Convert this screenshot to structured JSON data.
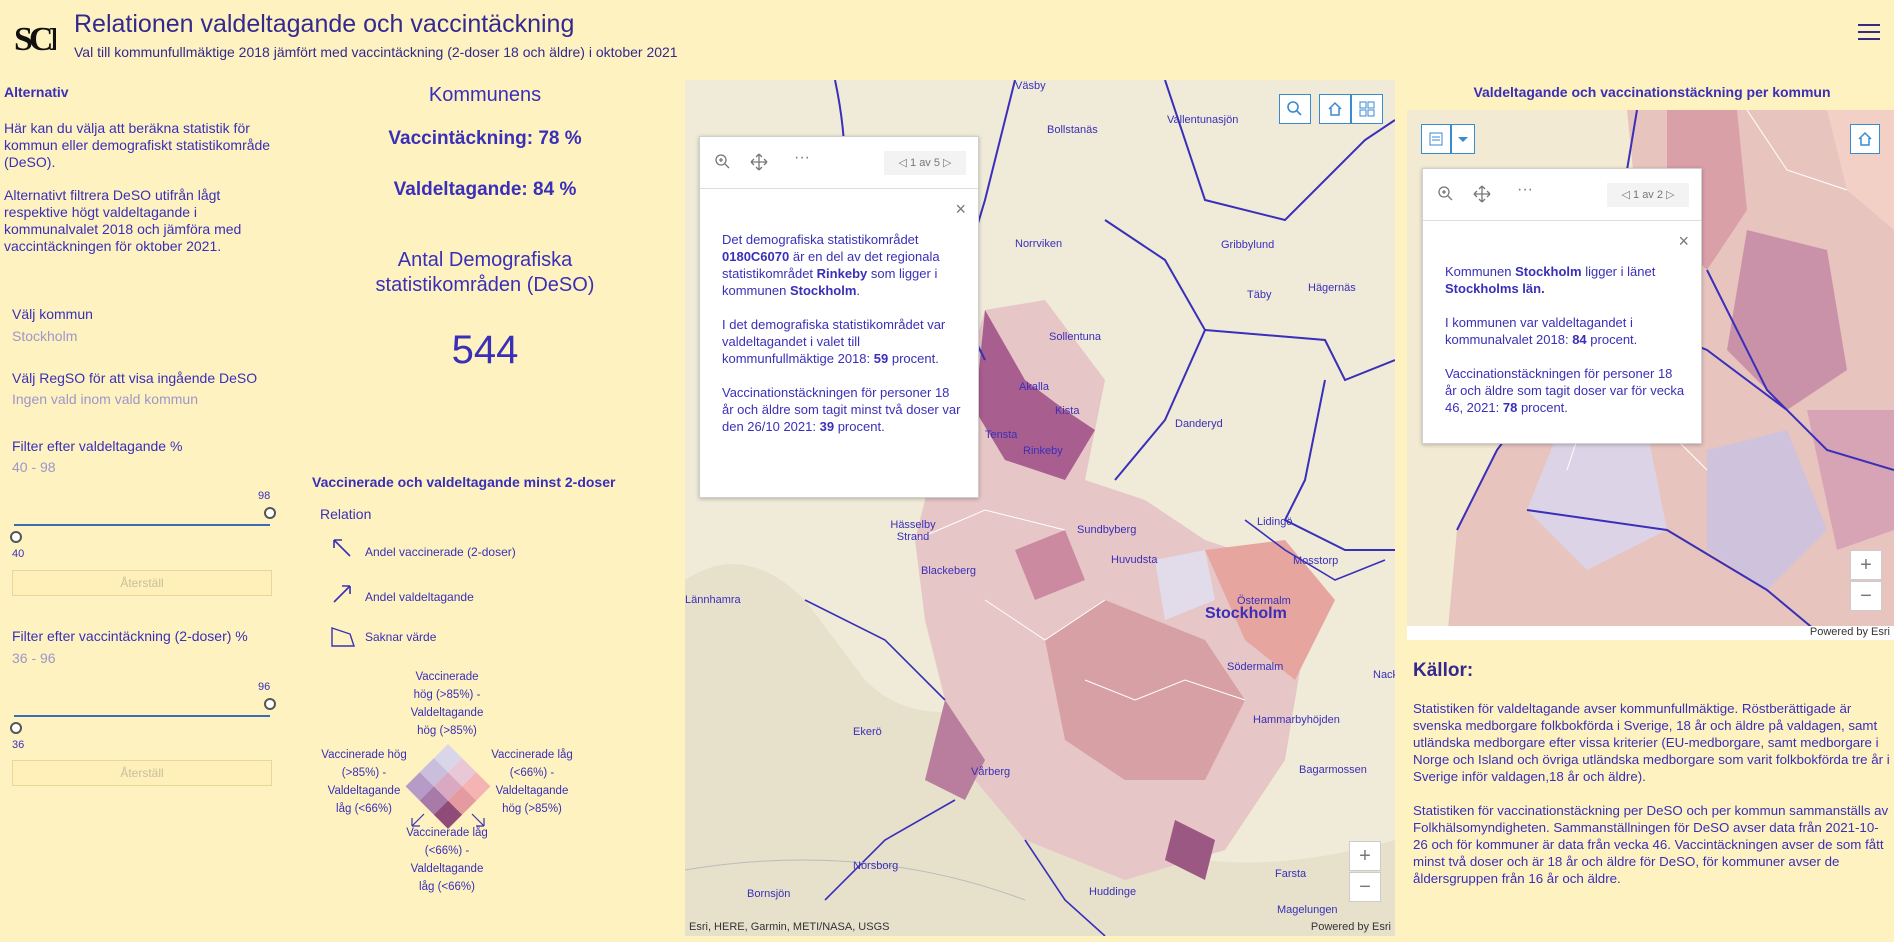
{
  "header": {
    "logo_text": "SCB",
    "title": "Relationen valdeltagande och vaccintäckning",
    "subtitle": "Val till kommunfullmäktige 2018 jämfört med vaccintäckning (2-doser 18 och äldre) i oktober 2021"
  },
  "sidebar": {
    "heading": "Alternativ",
    "para1": "Här kan du välja att beräkna statistik för kommun eller demografiskt statistikområde (DeSO).",
    "para2": "Alternativt filtrera DeSO utifrån lågt respektive högt valdeltagande i kommunalvalet 2018 och jämföra med vaccintäckningen för oktober 2021.",
    "kommun_label": "Välj kommun",
    "kommun_value": "Stockholm",
    "regso_label": "Välj RegSO för att visa ingående DeSO",
    "regso_value": "Ingen vald inom vald kommun",
    "filter1_label": "Filter efter valdeltagande %",
    "filter1_range": "40 - 98",
    "filter1_min": "40",
    "filter1_max": "98",
    "reset1": "Återställ",
    "filter2_label": "Filter efter vaccintäckning (2-doser) %",
    "filter2_range": "36 - 96",
    "filter2_min": "36",
    "filter2_max": "96",
    "reset2": "Återställ"
  },
  "stats": {
    "heading": "Kommunens",
    "vacc": "Vaccintäckning: 78 %",
    "val": "Valdeltagande: 84 %",
    "deso_heading": "Antal Demografiska statistikområden (DeSO)",
    "deso_count": "544"
  },
  "legend": {
    "title": "Vaccinerade och valdeltagande minst 2-doser",
    "relation": "Relation",
    "item1": "Andel vaccinerade (2-doser)",
    "item2": "Andel valdeltagande",
    "item3": "Saknar värde",
    "top": "Vaccinerade hög (>85%) - Valdeltagande hög (>85%)",
    "left": "Vaccinerade hög (>85%) - Valdeltagande låg (<66%)",
    "right": "Vaccinerade låg (<66%) - Valdeltagande hög (>85%)",
    "bottom": "Vaccinerade låg (<66%) - Valdeltagande låg (<66%)"
  },
  "map": {
    "places": [
      "Väsby",
      "Bollstanäs",
      "Vallentunasjön",
      "Norrviken",
      "Gribbylund",
      "Täby",
      "Hägernäs",
      "Sollentuna",
      "Akalla",
      "Kista",
      "Tensta",
      "Rinkeby",
      "Danderyd",
      "Hässelby Strand",
      "Sundbyberg",
      "Lidingö",
      "Blackeberg",
      "Huvudsta",
      "Mosstorp",
      "Östermalm",
      "Stockholm",
      "Södermalm",
      "Nacka",
      "Ekerö",
      "Hammarbyhöjden",
      "Bagarmossen",
      "Vårberg",
      "Norsborg",
      "Huddinge",
      "Farsta",
      "Bornsjön",
      "Magelungen",
      "Lännhamra"
    ],
    "attribution": "Esri, HERE, Garmin, METI/NASA, USGS",
    "powered": "Powered by Esri",
    "popup_pager": "1 av 5",
    "popup_p1a": "Det demografiska statistikområdet",
    "popup_code": "0180C6070",
    "popup_p1b": "är en del av det regionala statistikområdet",
    "popup_regso": "Rinkeby",
    "popup_p1c": "som ligger i kommunen",
    "popup_kommun": "Stockholm",
    "popup_p2": "I det demografiska statistikområdet var valdeltagandet i valet till kommunfullmäktige 2018:",
    "popup_val": "59",
    "popup_unit": "procent.",
    "popup_p3": "Vaccinationstäckningen för personer 18 år och äldre som tagit minst två doser var den 26/10 2021:",
    "popup_vacc": "39"
  },
  "map2": {
    "title": "Valdeltagande och vaccinationstäckning per kommun",
    "powered": "Powered by Esri",
    "popup_pager": "1 av 2",
    "p1a": "Kommunen",
    "kommun": "Stockholm",
    "p1b": "ligger i länet",
    "lan": "Stockholms län.",
    "p2": "I kommunen var valdeltagandet i kommunalvalet 2018:",
    "val": "84",
    "unit": "procent.",
    "p3": "Vaccinationstäckningen för personer 18 år och äldre som tagit doser var för vecka 46, 2021:",
    "vacc": "78"
  },
  "kallor": {
    "title": "Källor:",
    "p1": "Statistiken för valdeltagande avser kommunfullmäktige. Röstberättigade är svenska medborgare folkbokförda i Sverige, 18 år och äldre på valdagen, samt utländska medborgare efter vissa kriterier (EU-medborgare, samt medborgare i Norge och Island och övriga utländska medborgare som varit folkbokförda tre år i Sverige inför valdagen,18 år och äldre).",
    "p2": "Statistiken för vaccinationstäckning per DeSO och per kommun sammanställs av Folkhälsomyndigheten. Sammanställningen för DeSO avser data från 2021-10-26 och för kommuner är data från vecka 46. Vaccintäckningen avser de som fått minst två doser och är 18 år och äldre för DeSO, för kommuner avser de åldersgruppen från 16 år och äldre."
  }
}
